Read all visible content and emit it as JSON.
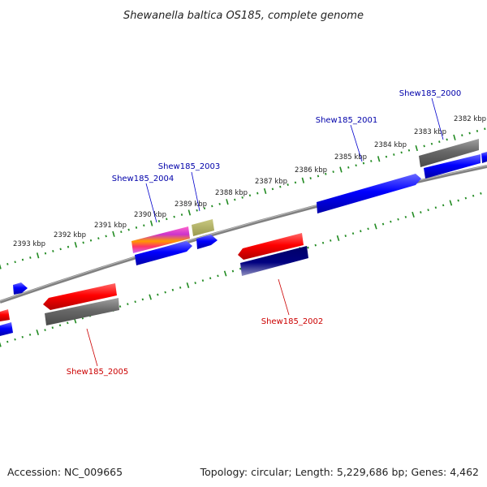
{
  "title": "Shewanella baltica OS185, complete genome",
  "accession": "Accession: NC_009665",
  "summary": "Topology: circular; Length: 5,229,686 bp; Genes: 4,462",
  "colors": {
    "backbone": "#808080",
    "tick": "#228B22",
    "forward_cds": "#ff0000",
    "reverse_cds": "#0000ff",
    "label_forward": "#cc0000",
    "label_reverse": "#0000aa",
    "other_gene": "#707070",
    "misc_feature": "#aaaa55",
    "multi_feature": "#dd33aa"
  },
  "kbp_labels": [
    "2382 kbp",
    "2383 kbp",
    "2384 kbp",
    "2385 kbp",
    "2386 kbp",
    "2387 kbp",
    "2388 kbp",
    "2389 kbp",
    "2390 kbp",
    "2391 kbp",
    "2392 kbp",
    "2393 kbp"
  ],
  "gene_labels": [
    {
      "text": "Shew185_2000",
      "strand": "reverse"
    },
    {
      "text": "Shew185_2001",
      "strand": "reverse"
    },
    {
      "text": "Shew185_2003",
      "strand": "reverse"
    },
    {
      "text": "Shew185_2004",
      "strand": "reverse"
    },
    {
      "text": "Shew185_2002",
      "strand": "forward"
    },
    {
      "text": "Shew185_2005",
      "strand": "forward"
    }
  ]
}
